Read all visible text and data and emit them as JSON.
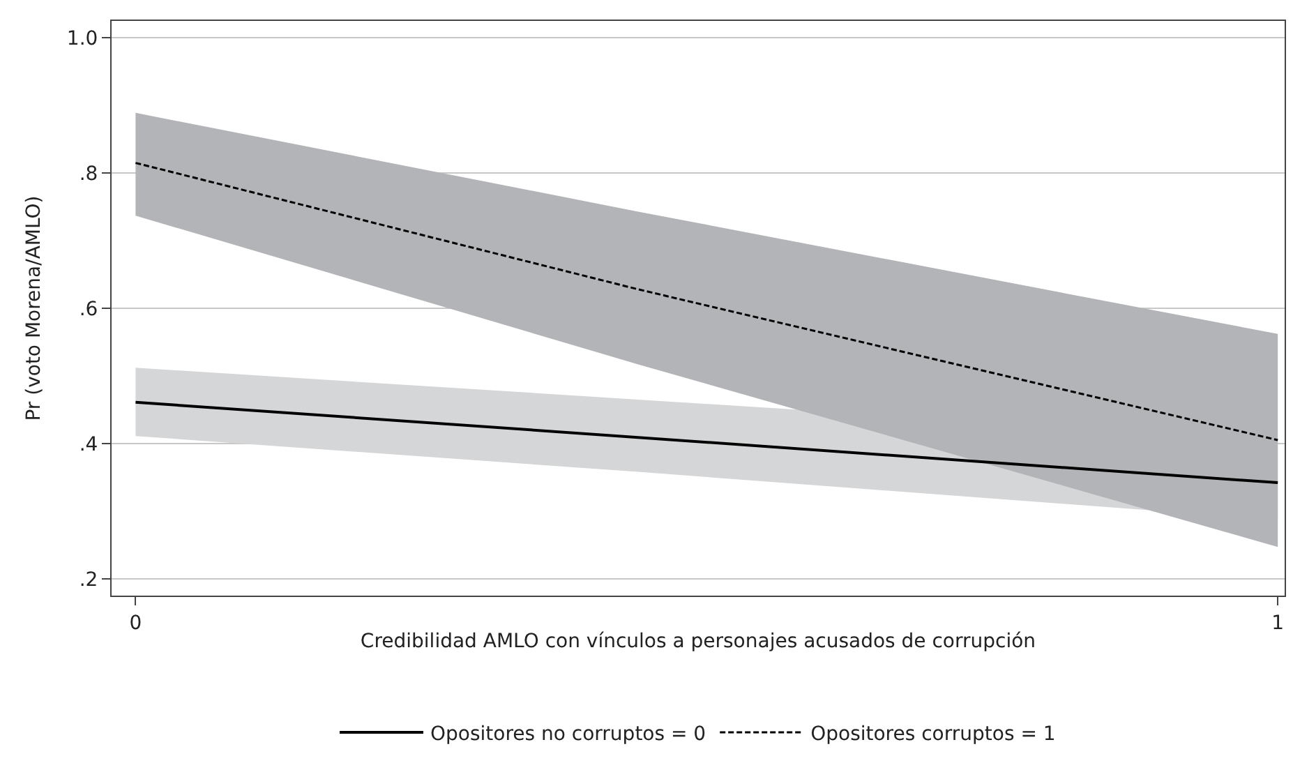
{
  "chart_data": {
    "type": "line",
    "xlabel": "Credibilidad AMLO con vínculos a personajes acusados de corrupción",
    "ylabel": "Pr (voto Morena/AMLO)",
    "x": [
      0,
      0.44,
      1
    ],
    "series": [
      {
        "name": "Opositores no corruptos = 0",
        "color": "#000000",
        "line_style": "solid",
        "values": [
          0.461,
          0.409,
          0.342
        ],
        "lower": [
          0.411,
          0.358,
          0.287
        ],
        "upper": [
          0.512,
          0.465,
          0.405
        ]
      },
      {
        "name": "Opositores corruptos = 1",
        "color": "#000000",
        "line_style": "dashed",
        "values": [
          0.815,
          0.628,
          0.405
        ],
        "lower": [
          0.737,
          0.517,
          0.247
        ],
        "upper": [
          0.889,
          0.743,
          0.562
        ]
      }
    ],
    "xlim": [
      -0.021,
      1.006
    ],
    "ylim": [
      0.175,
      1.025
    ],
    "xticks": [
      0,
      1
    ],
    "yticks": [
      {
        "value": 0.2,
        "label": ".2"
      },
      {
        "value": 0.4,
        "label": ".4"
      },
      {
        "value": 0.6,
        "label": ".6"
      },
      {
        "value": 0.8,
        "label": ".8"
      },
      {
        "value": 1.0,
        "label": "1.0"
      }
    ],
    "grid": "y",
    "legend": "bottom",
    "marker": "none"
  }
}
